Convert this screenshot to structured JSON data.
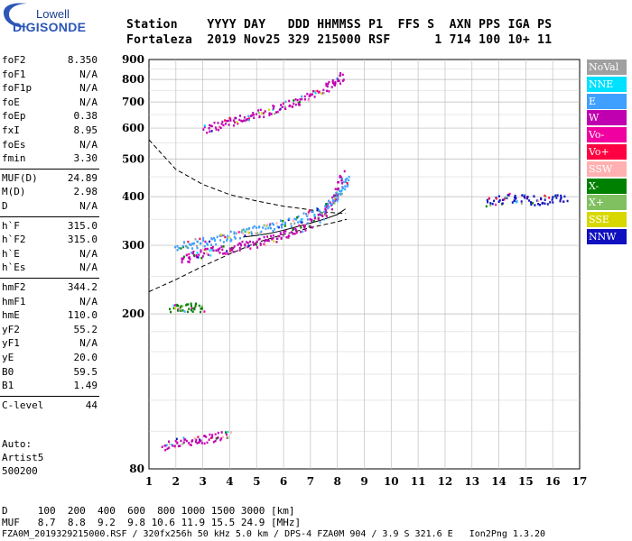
{
  "logo": {
    "line1": "Lowell",
    "line2": "DIGISONDE"
  },
  "header": {
    "line1": "Station    YYYY DAY   DDD HHMMSS P1  FFS S  AXN PPS IGA PS",
    "line2": "Fortaleza  2019 Nov25 329 215000 RSF      1 714 100 10+ 11"
  },
  "params_group1": [
    {
      "k": "foF2",
      "v": "8.350"
    },
    {
      "k": "foF1",
      "v": "N/A"
    },
    {
      "k": "foF1p",
      "v": "N/A"
    },
    {
      "k": "foE",
      "v": "N/A"
    },
    {
      "k": "foEp",
      "v": "0.38"
    },
    {
      "k": "fxI",
      "v": "8.95"
    },
    {
      "k": "foEs",
      "v": "N/A"
    },
    {
      "k": "fmin",
      "v": "3.30"
    }
  ],
  "params_group2": [
    {
      "k": "MUF(D)",
      "v": "24.89"
    },
    {
      "k": "M(D)",
      "v": "2.98"
    },
    {
      "k": "D",
      "v": "N/A"
    }
  ],
  "params_group3": [
    {
      "k": "h`F",
      "v": "315.0"
    },
    {
      "k": "h`F2",
      "v": "315.0"
    },
    {
      "k": "h`E",
      "v": "N/A"
    },
    {
      "k": "h`Es",
      "v": "N/A"
    }
  ],
  "params_group4": [
    {
      "k": "hmF2",
      "v": "344.2"
    },
    {
      "k": "hmF1",
      "v": "N/A"
    },
    {
      "k": "hmE",
      "v": "110.0"
    },
    {
      "k": "yF2",
      "v": "55.2"
    },
    {
      "k": "yF1",
      "v": "N/A"
    },
    {
      "k": "yE",
      "v": "20.0"
    },
    {
      "k": "B0",
      "v": "59.5"
    },
    {
      "k": "B1",
      "v": "1.49"
    }
  ],
  "params_group5": [
    {
      "k": "C-level",
      "v": "44"
    }
  ],
  "auto": {
    "l1": "Auto:",
    "l2": "Artist5",
    "l3": "500200"
  },
  "footer": {
    "d_line": "D     100  200  400  600  800 1000 1500 3000 [km]",
    "muf_line": "MUF   8.7  8.8  9.2  9.8 10.6 11.9 15.5 24.9 [MHz]",
    "file_line": "FZA0M_2019329215000.RSF / 320fx256h 50 kHz 5.0 km / DPS-4 FZA0M 904 / 3.9 S 321.6 E   Ion2Png 1.3.20"
  },
  "legend": [
    {
      "label": "NoVal",
      "color": "#a0a0a0"
    },
    {
      "label": "NNE",
      "color": "#00e0ff"
    },
    {
      "label": "E",
      "color": "#3fa0ff"
    },
    {
      "label": "W",
      "color": "#c000b0"
    },
    {
      "label": "Vo-",
      "color": "#f000a0"
    },
    {
      "label": "Vo+",
      "color": "#ff0040"
    },
    {
      "label": "SSW",
      "color": "#ffb0b0"
    },
    {
      "label": "X-",
      "color": "#008000"
    },
    {
      "label": "X+",
      "color": "#80c060"
    },
    {
      "label": "SSE",
      "color": "#d8d800"
    },
    {
      "label": "NNW",
      "color": "#1010c0"
    }
  ],
  "chart_data": {
    "type": "scatter",
    "title": "",
    "xlabel": "",
    "ylabel": "",
    "xlim": [
      1,
      17
    ],
    "ylim": [
      80,
      900
    ],
    "x_ticks": [
      "1",
      "2",
      "3",
      "4",
      "5",
      "6",
      "7",
      "8",
      "9",
      "10",
      "11",
      "12",
      "13",
      "14",
      "15",
      "16",
      "17"
    ],
    "y_ticks": [
      "80",
      "200",
      "300",
      "400",
      "500",
      "600",
      "700",
      "800",
      "900"
    ],
    "y_tick_values": [
      80,
      200,
      300,
      400,
      500,
      600,
      700,
      800,
      900
    ],
    "y_scale": "log",
    "grid": true,
    "series": [
      {
        "trace": "o-trace",
        "color": "#c000b0",
        "x": [
          2.2,
          2.6,
          3.0,
          3.5,
          4.0,
          4.5,
          5.0,
          5.5,
          6.0,
          6.5,
          7.0,
          7.4,
          7.7,
          8.0,
          8.2
        ],
        "y": [
          278,
          283,
          287,
          292,
          296,
          301,
          306,
          312,
          320,
          330,
          342,
          360,
          380,
          420,
          460
        ]
      },
      {
        "trace": "x-trace",
        "color": "#3fa0ff",
        "x": [
          2.0,
          2.5,
          3.0,
          3.5,
          4.0,
          4.5,
          5.0,
          5.5,
          6.0,
          6.5,
          7.0,
          7.5,
          7.9,
          8.2,
          8.4
        ],
        "y": [
          300,
          303,
          307,
          312,
          318,
          324,
          330,
          336,
          343,
          351,
          362,
          375,
          395,
          420,
          455
        ]
      },
      {
        "trace": "second-hop",
        "color": "#c000b0",
        "x": [
          3.0,
          3.5,
          4.0,
          4.5,
          5.0,
          5.5,
          6.0,
          6.5,
          7.0,
          7.5,
          7.9,
          8.2
        ],
        "y": [
          600,
          610,
          625,
          640,
          655,
          670,
          690,
          710,
          730,
          760,
          790,
          820
        ]
      },
      {
        "trace": "spread-f",
        "color": "#1010c0",
        "x": [
          13.5,
          14.0,
          14.5,
          15.0,
          15.5,
          16.0,
          16.5
        ],
        "y": [
          390,
          395,
          400,
          395,
          392,
          398,
          400
        ]
      },
      {
        "trace": "es-low",
        "color": "#c000b0",
        "x": [
          1.5,
          2.0,
          2.5,
          3.0,
          3.5,
          4.0
        ],
        "y": [
          92,
          94,
          95,
          96,
          97,
          98
        ]
      },
      {
        "trace": "e-layer",
        "color": "#008000",
        "x": [
          1.8,
          2.2,
          2.6,
          3.0
        ],
        "y": [
          208,
          209,
          209,
          208
        ]
      }
    ],
    "profile_dashed": {
      "x": [
        1.0,
        2.0,
        3.0,
        4.0,
        5.0,
        6.0,
        7.0,
        7.6,
        8.0,
        8.3
      ],
      "y": [
        560,
        470,
        430,
        405,
        390,
        378,
        370,
        365,
        363,
        362
      ]
    },
    "profile_dashed_low": {
      "x": [
        1.0,
        2.0,
        3.0,
        4.0,
        5.0,
        6.0,
        7.0,
        8.0,
        8.35
      ],
      "y": [
        228,
        245,
        265,
        285,
        305,
        320,
        333,
        345,
        350
      ]
    },
    "profile_solid": {
      "x": [
        4.5,
        5.0,
        5.5,
        6.0,
        6.5,
        7.0,
        7.5,
        8.0,
        8.3
      ],
      "y": [
        315,
        318,
        322,
        328,
        335,
        342,
        350,
        360,
        372
      ]
    }
  }
}
